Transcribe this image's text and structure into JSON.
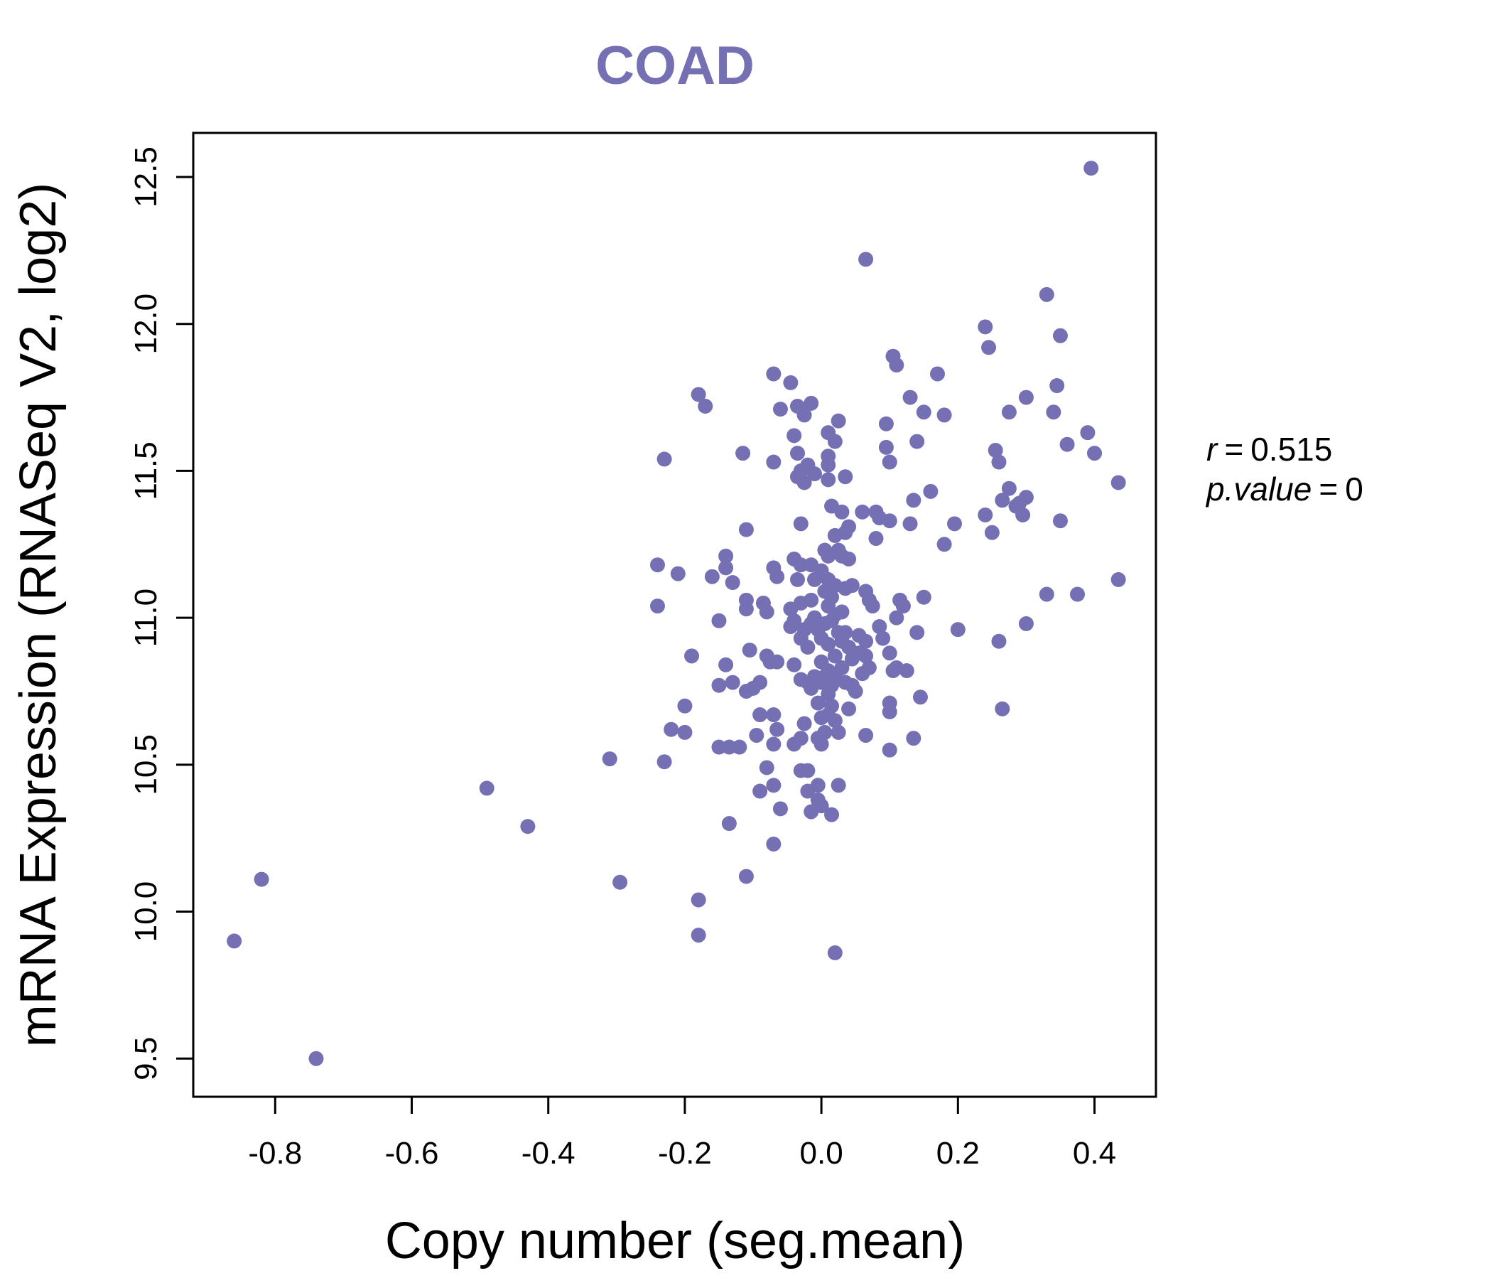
{
  "chart_data": {
    "type": "scatter",
    "title": "COAD",
    "xlabel": "Copy number (seg.mean)",
    "ylabel": "mRNA Expression (RNASeq V2, log2)",
    "xlim": [
      -0.92,
      0.49
    ],
    "ylim": [
      9.37,
      12.65
    ],
    "x_ticks": [
      -0.8,
      -0.6,
      -0.4,
      -0.2,
      0.0,
      0.2,
      0.4
    ],
    "x_tick_labels": [
      "-0.8",
      "-0.6",
      "-0.4",
      "-0.2",
      "0.0",
      "0.2",
      "0.4"
    ],
    "y_ticks": [
      9.5,
      10.0,
      10.5,
      11.0,
      11.5,
      12.0,
      12.5
    ],
    "y_tick_labels": [
      "9.5",
      "10.0",
      "10.5",
      "11.0",
      "11.5",
      "12.0",
      "12.5"
    ],
    "color": "#7570B3",
    "stats": {
      "r_label": "r",
      "r_value": "0.515",
      "p_label": "p.value",
      "p_value": "0"
    },
    "points": [
      [
        -0.86,
        9.9
      ],
      [
        -0.82,
        10.11
      ],
      [
        -0.74,
        9.5
      ],
      [
        -0.49,
        10.42
      ],
      [
        -0.43,
        10.29
      ],
      [
        -0.31,
        10.52
      ],
      [
        -0.295,
        10.1
      ],
      [
        -0.24,
        11.18
      ],
      [
        -0.24,
        11.04
      ],
      [
        -0.23,
        11.54
      ],
      [
        -0.23,
        10.51
      ],
      [
        -0.22,
        10.62
      ],
      [
        -0.21,
        11.15
      ],
      [
        -0.2,
        10.7
      ],
      [
        -0.2,
        10.61
      ],
      [
        -0.19,
        10.87
      ],
      [
        -0.18,
        11.76
      ],
      [
        -0.18,
        10.04
      ],
      [
        -0.18,
        9.92
      ],
      [
        -0.17,
        11.72
      ],
      [
        -0.16,
        11.14
      ],
      [
        -0.15,
        10.99
      ],
      [
        -0.15,
        10.77
      ],
      [
        -0.15,
        10.56
      ],
      [
        -0.14,
        11.21
      ],
      [
        -0.14,
        11.17
      ],
      [
        -0.14,
        10.84
      ],
      [
        -0.135,
        10.56
      ],
      [
        -0.135,
        10.3
      ],
      [
        -0.13,
        11.12
      ],
      [
        -0.13,
        10.78
      ],
      [
        -0.12,
        10.56
      ],
      [
        -0.115,
        11.56
      ],
      [
        -0.11,
        11.3
      ],
      [
        -0.11,
        11.06
      ],
      [
        -0.11,
        11.03
      ],
      [
        -0.11,
        10.75
      ],
      [
        -0.11,
        10.12
      ],
      [
        -0.105,
        10.89
      ],
      [
        -0.1,
        10.76
      ],
      [
        -0.095,
        10.6
      ],
      [
        -0.09,
        10.78
      ],
      [
        -0.09,
        10.67
      ],
      [
        -0.09,
        10.41
      ],
      [
        -0.085,
        11.05
      ],
      [
        -0.08,
        11.02
      ],
      [
        -0.08,
        10.87
      ],
      [
        -0.08,
        10.49
      ],
      [
        -0.075,
        10.85
      ],
      [
        -0.07,
        11.83
      ],
      [
        -0.07,
        11.53
      ],
      [
        -0.07,
        11.17
      ],
      [
        -0.07,
        10.67
      ],
      [
        -0.07,
        10.57
      ],
      [
        -0.07,
        10.43
      ],
      [
        -0.07,
        10.23
      ],
      [
        -0.065,
        11.14
      ],
      [
        -0.065,
        10.85
      ],
      [
        -0.065,
        10.62
      ],
      [
        -0.06,
        11.71
      ],
      [
        -0.06,
        10.35
      ],
      [
        -0.045,
        11.8
      ],
      [
        -0.045,
        11.03
      ],
      [
        -0.045,
        10.97
      ],
      [
        -0.04,
        11.62
      ],
      [
        -0.04,
        11.2
      ],
      [
        -0.04,
        10.99
      ],
      [
        -0.04,
        10.84
      ],
      [
        -0.04,
        10.57
      ],
      [
        -0.035,
        11.72
      ],
      [
        -0.035,
        11.56
      ],
      [
        -0.035,
        11.48
      ],
      [
        -0.035,
        11.13
      ],
      [
        -0.03,
        11.5
      ],
      [
        -0.03,
        11.32
      ],
      [
        -0.03,
        11.18
      ],
      [
        -0.03,
        11.05
      ],
      [
        -0.03,
        10.93
      ],
      [
        -0.03,
        10.79
      ],
      [
        -0.03,
        10.59
      ],
      [
        -0.03,
        10.48
      ],
      [
        -0.025,
        11.69
      ],
      [
        -0.025,
        11.46
      ],
      [
        -0.025,
        10.96
      ],
      [
        -0.025,
        10.64
      ],
      [
        -0.02,
        11.52
      ],
      [
        -0.02,
        10.9
      ],
      [
        -0.02,
        10.78
      ],
      [
        -0.02,
        10.48
      ],
      [
        -0.02,
        10.41
      ],
      [
        -0.015,
        11.73
      ],
      [
        -0.015,
        11.18
      ],
      [
        -0.015,
        11.06
      ],
      [
        -0.015,
        10.98
      ],
      [
        -0.015,
        10.76
      ],
      [
        -0.015,
        10.34
      ],
      [
        -0.01,
        11.49
      ],
      [
        -0.01,
        11.13
      ],
      [
        -0.01,
        11.0
      ],
      [
        -0.01,
        10.8
      ],
      [
        -0.005,
        10.96
      ],
      [
        -0.005,
        10.71
      ],
      [
        -0.005,
        10.59
      ],
      [
        -0.005,
        10.43
      ],
      [
        -0.005,
        10.38
      ],
      [
        0.0,
        11.16
      ],
      [
        0.0,
        10.93
      ],
      [
        0.0,
        10.85
      ],
      [
        0.0,
        10.78
      ],
      [
        0.0,
        10.66
      ],
      [
        0.0,
        10.57
      ],
      [
        0.0,
        10.36
      ],
      [
        0.005,
        11.23
      ],
      [
        0.005,
        11.09
      ],
      [
        0.005,
        10.98
      ],
      [
        0.005,
        10.8
      ],
      [
        0.005,
        10.61
      ],
      [
        0.01,
        11.63
      ],
      [
        0.01,
        11.55
      ],
      [
        0.01,
        11.52
      ],
      [
        0.01,
        11.47
      ],
      [
        0.01,
        11.21
      ],
      [
        0.01,
        11.13
      ],
      [
        0.01,
        11.04
      ],
      [
        0.01,
        10.91
      ],
      [
        0.01,
        10.82
      ],
      [
        0.01,
        10.74
      ],
      [
        0.01,
        10.67
      ],
      [
        0.015,
        11.38
      ],
      [
        0.015,
        11.07
      ],
      [
        0.015,
        10.99
      ],
      [
        0.015,
        10.77
      ],
      [
        0.015,
        10.7
      ],
      [
        0.015,
        10.33
      ],
      [
        0.02,
        11.6
      ],
      [
        0.02,
        11.28
      ],
      [
        0.02,
        11.11
      ],
      [
        0.02,
        11.01
      ],
      [
        0.02,
        10.87
      ],
      [
        0.02,
        10.8
      ],
      [
        0.02,
        10.65
      ],
      [
        0.02,
        9.86
      ],
      [
        0.025,
        11.67
      ],
      [
        0.025,
        11.23
      ],
      [
        0.025,
        10.95
      ],
      [
        0.025,
        10.61
      ],
      [
        0.025,
        10.43
      ],
      [
        0.03,
        11.36
      ],
      [
        0.03,
        11.21
      ],
      [
        0.03,
        11.02
      ],
      [
        0.03,
        10.92
      ],
      [
        0.03,
        10.83
      ],
      [
        0.035,
        11.48
      ],
      [
        0.035,
        11.29
      ],
      [
        0.035,
        11.1
      ],
      [
        0.035,
        10.95
      ],
      [
        0.035,
        10.78
      ],
      [
        0.04,
        11.31
      ],
      [
        0.04,
        11.2
      ],
      [
        0.04,
        10.9
      ],
      [
        0.04,
        10.69
      ],
      [
        0.045,
        11.11
      ],
      [
        0.045,
        10.86
      ],
      [
        0.045,
        10.77
      ],
      [
        0.05,
        10.75
      ],
      [
        0.055,
        10.94
      ],
      [
        0.055,
        10.88
      ],
      [
        0.06,
        11.36
      ],
      [
        0.06,
        10.81
      ],
      [
        0.065,
        12.22
      ],
      [
        0.065,
        11.09
      ],
      [
        0.065,
        10.92
      ],
      [
        0.065,
        10.87
      ],
      [
        0.065,
        10.6
      ],
      [
        0.07,
        10.83
      ],
      [
        0.07,
        11.06
      ],
      [
        0.075,
        11.04
      ],
      [
        0.08,
        11.27
      ],
      [
        0.08,
        11.36
      ],
      [
        0.085,
        11.34
      ],
      [
        0.085,
        10.97
      ],
      [
        0.09,
        10.93
      ],
      [
        0.095,
        11.66
      ],
      [
        0.095,
        11.58
      ],
      [
        0.1,
        11.53
      ],
      [
        0.1,
        11.33
      ],
      [
        0.1,
        10.88
      ],
      [
        0.1,
        10.71
      ],
      [
        0.1,
        10.68
      ],
      [
        0.1,
        10.55
      ],
      [
        0.105,
        11.89
      ],
      [
        0.105,
        10.82
      ],
      [
        0.11,
        11.86
      ],
      [
        0.11,
        11.0
      ],
      [
        0.11,
        10.83
      ],
      [
        0.115,
        11.06
      ],
      [
        0.12,
        11.04
      ],
      [
        0.125,
        10.82
      ],
      [
        0.13,
        11.75
      ],
      [
        0.13,
        11.32
      ],
      [
        0.135,
        11.4
      ],
      [
        0.135,
        10.59
      ],
      [
        0.14,
        11.6
      ],
      [
        0.14,
        10.95
      ],
      [
        0.145,
        10.73
      ],
      [
        0.15,
        11.7
      ],
      [
        0.15,
        11.07
      ],
      [
        0.16,
        11.43
      ],
      [
        0.17,
        11.83
      ],
      [
        0.18,
        11.69
      ],
      [
        0.18,
        11.25
      ],
      [
        0.195,
        11.32
      ],
      [
        0.2,
        10.96
      ],
      [
        0.24,
        11.99
      ],
      [
        0.24,
        11.35
      ],
      [
        0.245,
        11.92
      ],
      [
        0.25,
        11.29
      ],
      [
        0.255,
        11.57
      ],
      [
        0.26,
        11.53
      ],
      [
        0.26,
        10.92
      ],
      [
        0.265,
        11.4
      ],
      [
        0.265,
        10.69
      ],
      [
        0.275,
        11.7
      ],
      [
        0.275,
        11.44
      ],
      [
        0.285,
        11.38
      ],
      [
        0.29,
        11.39
      ],
      [
        0.295,
        11.35
      ],
      [
        0.3,
        11.75
      ],
      [
        0.3,
        11.41
      ],
      [
        0.3,
        10.98
      ],
      [
        0.33,
        12.1
      ],
      [
        0.33,
        11.08
      ],
      [
        0.34,
        11.7
      ],
      [
        0.345,
        11.79
      ],
      [
        0.35,
        11.96
      ],
      [
        0.35,
        11.33
      ],
      [
        0.36,
        11.59
      ],
      [
        0.375,
        11.08
      ],
      [
        0.39,
        11.63
      ],
      [
        0.395,
        12.53
      ],
      [
        0.4,
        11.56
      ],
      [
        0.435,
        11.46
      ],
      [
        0.435,
        11.13
      ]
    ]
  }
}
